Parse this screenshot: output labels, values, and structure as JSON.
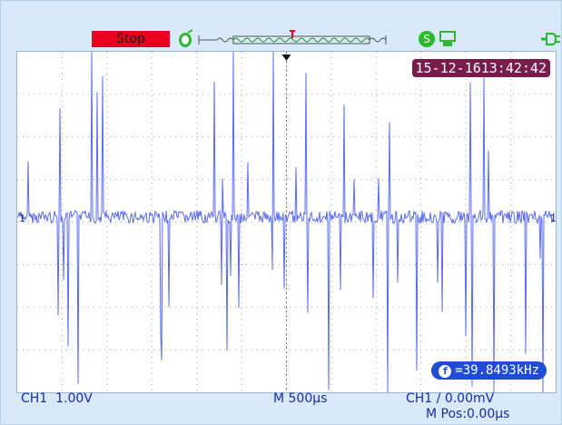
{
  "topbar": {
    "stop_label": "Stop",
    "icons": [
      "probe-icon",
      "trigger-window-icon",
      "settings-icon",
      "usb-icon",
      "power-plug-icon"
    ]
  },
  "screen": {
    "timestamp": "15-12-1613:42:42",
    "frequency_label": "=39.8493kHz",
    "channel_marker": "1",
    "channel_marker_right": "1"
  },
  "bottom": {
    "ch1_scale": "CH1  1.00V",
    "timebase": "M 500μs",
    "trigger": "CH1 ∕ 0.00mV",
    "position": "M Pos:0.00μs"
  },
  "colors": {
    "waveform": "#5a6cf0",
    "grid": "#a0a0a0",
    "stop_bg": "#e8001c",
    "timestamp_bg": "#7a1c4b",
    "frequency_bg": "#1f4bd6"
  }
}
